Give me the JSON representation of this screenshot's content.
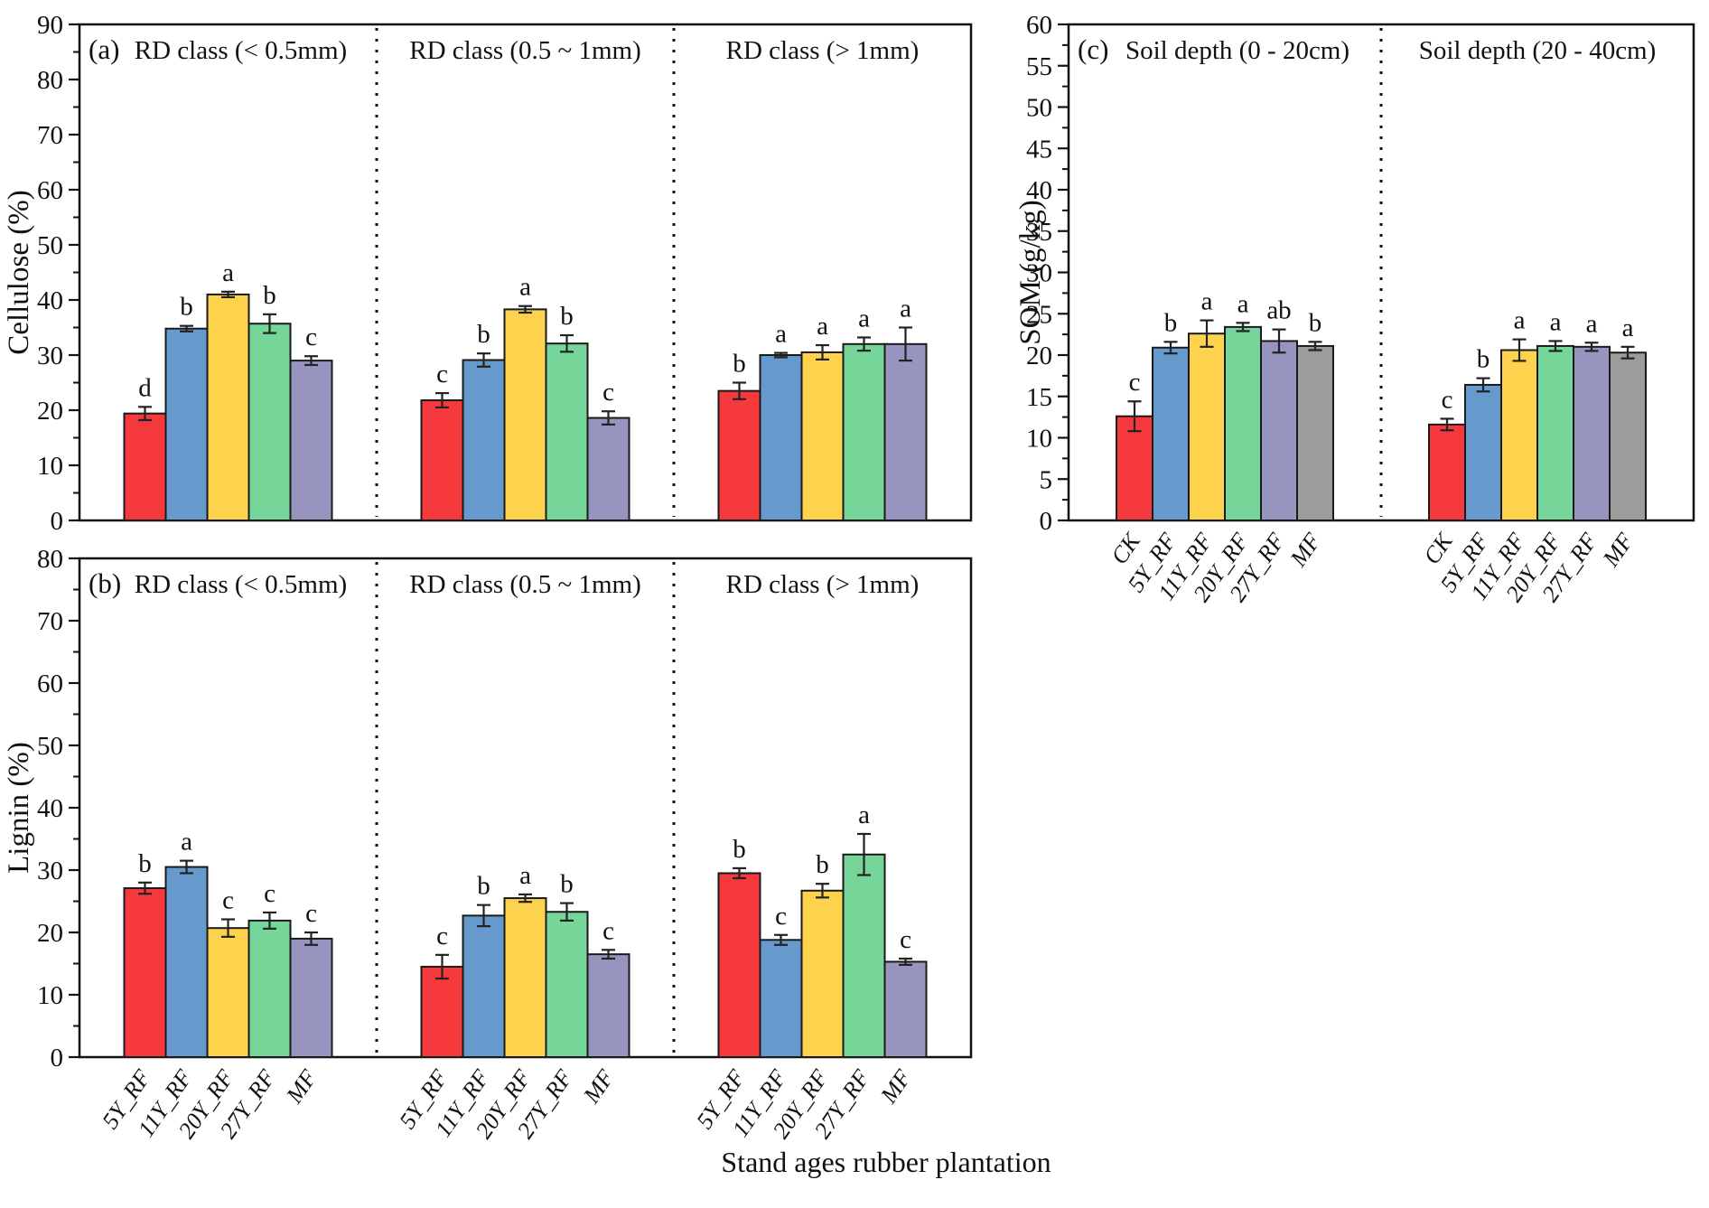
{
  "chart_data": {
    "type": "bar",
    "xlabel": "Stand ages rubber plantation",
    "palette": [
      "#F5393D",
      "#6699CC",
      "#FDD34E",
      "#76D69A",
      "#9795BF",
      "#9C9C9C"
    ],
    "bar_stroke": "#1A1A1A",
    "error_bar_color": "#222222",
    "panels": [
      {
        "corner_label": "(a)",
        "ylabel": "Cellulose (%)",
        "ylim": [
          0,
          90
        ],
        "ytick_step": 10,
        "yminor_step": 5,
        "show_x_labels": false,
        "sections": [
          {
            "title": "RD class (< 0.5mm)",
            "categories": [
              "5Y_RF",
              "11Y_RF",
              "20Y_RF",
              "27Y_RF",
              "MF"
            ],
            "values": [
              19.4,
              34.8,
              41.0,
              35.7,
              29.0
            ],
            "errors": [
              1.2,
              0.5,
              0.5,
              1.7,
              0.8
            ],
            "letters": [
              "d",
              "b",
              "a",
              "b",
              "c"
            ]
          },
          {
            "title": "RD class (0.5 ~ 1mm)",
            "categories": [
              "5Y_RF",
              "11Y_RF",
              "20Y_RF",
              "27Y_RF",
              "MF"
            ],
            "values": [
              21.8,
              29.1,
              38.3,
              32.1,
              18.6
            ],
            "errors": [
              1.3,
              1.2,
              0.6,
              1.5,
              1.2
            ],
            "letters": [
              "c",
              "b",
              "a",
              "b",
              "c"
            ]
          },
          {
            "title": "RD class (> 1mm)",
            "categories": [
              "5Y_RF",
              "11Y_RF",
              "20Y_RF",
              "27Y_RF",
              "MF"
            ],
            "values": [
              23.5,
              30.0,
              30.5,
              32.0,
              32.0
            ],
            "errors": [
              1.5,
              0.4,
              1.3,
              1.2,
              3.0
            ],
            "letters": [
              "b",
              "a",
              "a",
              "a",
              "a"
            ]
          }
        ]
      },
      {
        "corner_label": "(b)",
        "ylabel": "Lignin (%)",
        "ylim": [
          0,
          80
        ],
        "ytick_step": 10,
        "yminor_step": 5,
        "show_x_labels": true,
        "sections": [
          {
            "title": "RD class (< 0.5mm)",
            "categories": [
              "5Y_RF",
              "11Y_RF",
              "20Y_RF",
              "27Y_RF",
              "MF"
            ],
            "values": [
              27.1,
              30.5,
              20.7,
              21.9,
              19.0
            ],
            "errors": [
              0.9,
              1.0,
              1.4,
              1.3,
              1.0
            ],
            "letters": [
              "b",
              "a",
              "c",
              "c",
              "c"
            ]
          },
          {
            "title": "RD class (0.5 ~ 1mm)",
            "categories": [
              "5Y_RF",
              "11Y_RF",
              "20Y_RF",
              "27Y_RF",
              "MF"
            ],
            "values": [
              14.5,
              22.7,
              25.5,
              23.3,
              16.5
            ],
            "errors": [
              1.9,
              1.7,
              0.6,
              1.4,
              0.7
            ],
            "letters": [
              "c",
              "b",
              "a",
              "b",
              "c"
            ]
          },
          {
            "title": "RD class (> 1mm)",
            "categories": [
              "5Y_RF",
              "11Y_RF",
              "20Y_RF",
              "27Y_RF",
              "MF"
            ],
            "values": [
              29.5,
              18.8,
              26.7,
              32.5,
              15.3
            ],
            "errors": [
              0.8,
              0.8,
              1.1,
              3.3,
              0.5
            ],
            "letters": [
              "b",
              "c",
              "b",
              "a",
              "c"
            ]
          }
        ]
      },
      {
        "corner_label": "(c)",
        "ylabel": "SOM (g/kg)",
        "ylim": [
          0,
          60
        ],
        "ytick_step": 5,
        "yminor_step": 2.5,
        "show_x_labels": true,
        "sections": [
          {
            "title": "Soil depth (0 - 20cm)",
            "categories": [
              "CK",
              "5Y_RF",
              "11Y_RF",
              "20Y_RF",
              "27Y_RF",
              "MF"
            ],
            "values": [
              12.6,
              20.9,
              22.6,
              23.4,
              21.7,
              21.1
            ],
            "errors": [
              1.8,
              0.7,
              1.6,
              0.5,
              1.4,
              0.5
            ],
            "letters": [
              "c",
              "b",
              "a",
              "a",
              "ab",
              "b"
            ]
          },
          {
            "title": "Soil depth (20 - 40cm)",
            "categories": [
              "CK",
              "5Y_RF",
              "11Y_RF",
              "20Y_RF",
              "27Y_RF",
              "MF"
            ],
            "values": [
              11.6,
              16.4,
              20.6,
              21.1,
              21.0,
              20.3
            ],
            "errors": [
              0.7,
              0.8,
              1.3,
              0.6,
              0.5,
              0.7
            ],
            "letters": [
              "c",
              "b",
              "a",
              "a",
              "a",
              "a"
            ]
          }
        ]
      }
    ]
  }
}
